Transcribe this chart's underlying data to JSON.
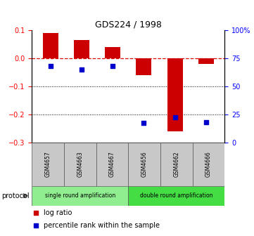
{
  "title": "GDS224 / 1998",
  "samples": [
    "GSM4657",
    "GSM4663",
    "GSM4667",
    "GSM4656",
    "GSM4662",
    "GSM4666"
  ],
  "log_ratio": [
    0.09,
    0.065,
    0.04,
    -0.06,
    -0.26,
    -0.02
  ],
  "percentile_rank": [
    68,
    65,
    68,
    17,
    22,
    18
  ],
  "bar_color": "#cc0000",
  "dot_color": "#0000cc",
  "ylim_left": [
    -0.3,
    0.1
  ],
  "ylim_right": [
    0,
    100
  ],
  "yticks_left": [
    0.1,
    0.0,
    -0.1,
    -0.2,
    -0.3
  ],
  "yticks_right": [
    100,
    75,
    50,
    25,
    0
  ],
  "zero_line_color": "#dd0000",
  "dotted_line_color": "#000000",
  "single_color": "#90ee90",
  "double_color": "#44dd44",
  "sample_box_color": "#c8c8c8",
  "protocol_label": "protocol",
  "single_label": "single round amplification",
  "double_label": "double round amplification",
  "legend1": "log ratio",
  "legend2": "percentile rank within the sample"
}
